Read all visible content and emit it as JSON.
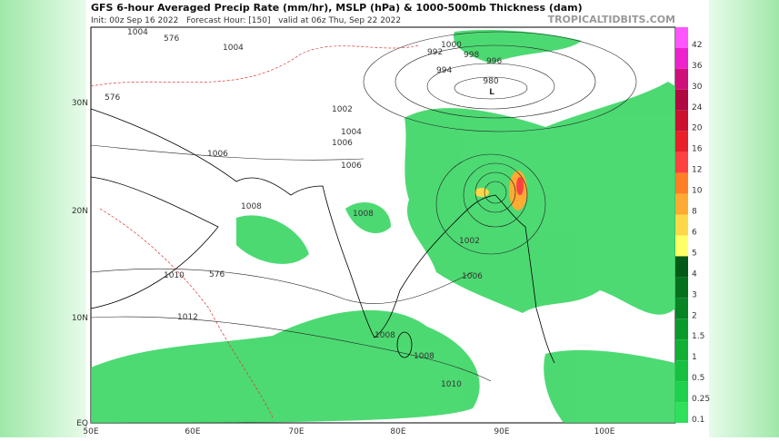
{
  "header": {
    "title": "GFS 6-hour Averaged Precip Rate (mm/hr), MSLP (hPa) & 1000-500mb Thickness (dam)",
    "subtitle": "Init: 00z Sep 16 2022   Forecast Hour: [150]   valid at 06z Thu, Sep 22 2022",
    "brand": "TROPICALTIDBITS.COM"
  },
  "map": {
    "lat_labels": [
      "30N",
      "20N",
      "10N",
      "EQ"
    ],
    "lon_labels": [
      "50E",
      "60E",
      "70E",
      "80E",
      "90E",
      "100E"
    ],
    "isobar_labels": [
      "1004",
      "1004",
      "1006",
      "1006",
      "1008",
      "1008",
      "1010",
      "1012",
      "1002",
      "1000",
      "998",
      "996",
      "994",
      "992",
      "1004",
      "1006",
      "1008",
      "1010",
      "1008",
      "1002",
      "1006",
      "576",
      "576",
      "576"
    ],
    "low": {
      "label": "L",
      "pressure": "980"
    }
  },
  "colorbar": {
    "levels": [
      42,
      36,
      30,
      24,
      20,
      16,
      12,
      10,
      8,
      6,
      5,
      4,
      3,
      2,
      1.5,
      1,
      0.5,
      0.25,
      0.1
    ],
    "colors": [
      "#ff55ff",
      "#ee22cc",
      "#d0107a",
      "#b00840",
      "#cc1030",
      "#e8202a",
      "#ff4040",
      "#ff7f27",
      "#ffaa33",
      "#ffd84a",
      "#ffff66",
      "#035a16",
      "#05701d",
      "#078524",
      "#0a9a2c",
      "#10b035",
      "#17c040",
      "#1fd04c",
      "#2ee05a"
    ]
  }
}
